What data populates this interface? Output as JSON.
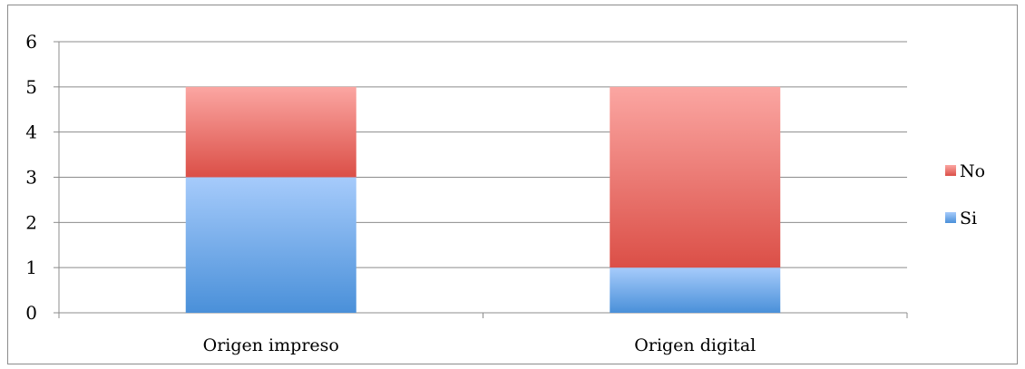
{
  "chart_data": {
    "type": "bar",
    "stacked": true,
    "title": "",
    "xlabel": "",
    "ylabel": "",
    "categories": [
      "Origen impreso",
      "Origen digital"
    ],
    "series": [
      {
        "name": "Si",
        "values": [
          3,
          1
        ],
        "color_bottom": "#4a90d9",
        "color_top": "#a6cbfb"
      },
      {
        "name": "No",
        "values": [
          2,
          4
        ],
        "color_bottom": "#db4f47",
        "color_top": "#fba6a2"
      }
    ],
    "ylim": [
      0,
      6
    ],
    "yticks": [
      0,
      1,
      2,
      3,
      4,
      5,
      6
    ],
    "grid": true,
    "legend": {
      "placement": "right",
      "order": [
        "No",
        "Si"
      ]
    }
  }
}
